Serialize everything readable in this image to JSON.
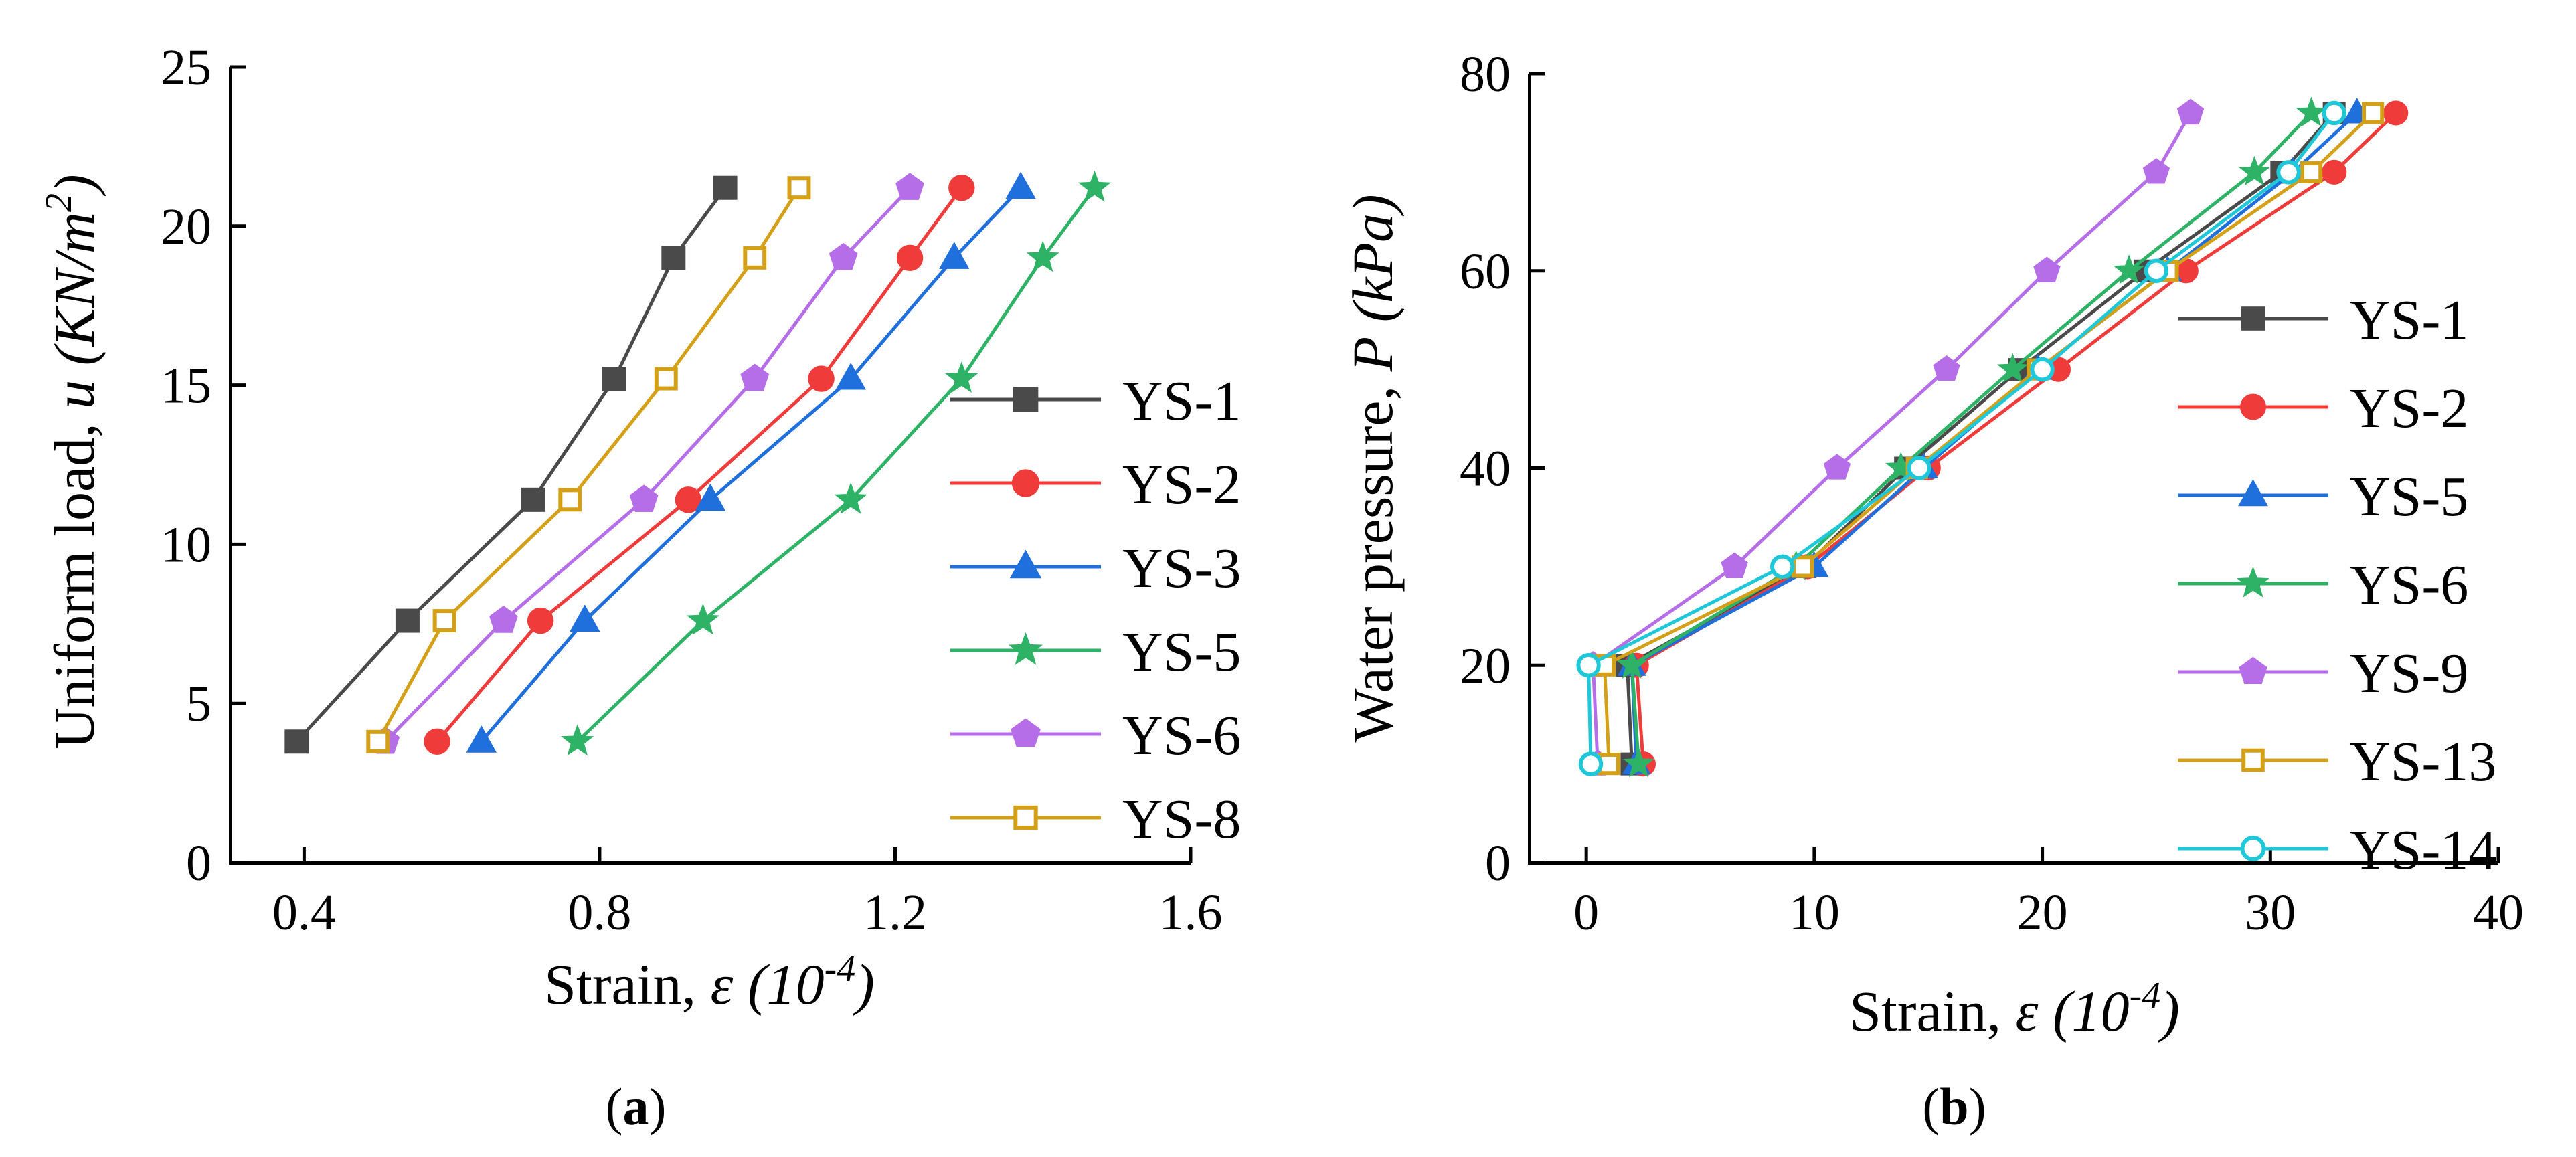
{
  "chart_data": [
    {
      "type": "line",
      "panel_label": "a",
      "xlabel_main": "Strain, ",
      "xlabel_symbol": "ε",
      "xlabel_unit": "(10",
      "xlabel_exp": "-4",
      "xlabel_close": ")",
      "ylabel_main": "Uniform load, ",
      "ylabel_symbol": "u",
      "ylabel_unit": "(KN/m",
      "ylabel_exp": "2",
      "ylabel_close": ")",
      "xlim": [
        0.3,
        1.6
      ],
      "ylim": [
        0,
        25
      ],
      "xticks": [
        0.4,
        0.8,
        1.2,
        1.6
      ],
      "xtick_labels": [
        "0.4",
        "0.8",
        "1.2",
        "1.6"
      ],
      "yticks": [
        0,
        5,
        10,
        15,
        20,
        25
      ],
      "ytick_labels": [
        "0",
        "5",
        "10",
        "15",
        "20",
        "25"
      ],
      "grid": false,
      "legend_position": "right",
      "series": [
        {
          "name": "YS-1",
          "color": "#4a4a4a",
          "marker": "square",
          "x": [
            0.39,
            0.54,
            0.71,
            0.82,
            0.9,
            0.97
          ],
          "y": [
            3.8,
            7.6,
            11.4,
            15.2,
            19.0,
            21.2
          ]
        },
        {
          "name": "YS-2",
          "color": "#f03b3b",
          "marker": "circle",
          "x": [
            0.58,
            0.72,
            0.92,
            1.1,
            1.22,
            1.29
          ],
          "y": [
            3.8,
            7.6,
            11.4,
            15.2,
            19.0,
            21.2
          ]
        },
        {
          "name": "YS-3",
          "color": "#1f6fdc",
          "marker": "triangle",
          "x": [
            0.64,
            0.78,
            0.95,
            1.14,
            1.28,
            1.37
          ],
          "y": [
            3.8,
            7.6,
            11.4,
            15.2,
            19.0,
            21.2
          ]
        },
        {
          "name": "YS-5",
          "color": "#2db266",
          "marker": "star",
          "x": [
            0.77,
            0.94,
            1.14,
            1.29,
            1.4,
            1.47
          ],
          "y": [
            3.8,
            7.6,
            11.4,
            15.2,
            19.0,
            21.2
          ]
        },
        {
          "name": "YS-6",
          "color": "#b56ee8",
          "marker": "pentagon",
          "x": [
            0.51,
            0.67,
            0.86,
            1.01,
            1.13,
            1.22
          ],
          "y": [
            3.8,
            7.6,
            11.4,
            15.2,
            19.0,
            21.2
          ]
        },
        {
          "name": "YS-8",
          "color": "#d4a017",
          "marker": "open-square",
          "x": [
            0.5,
            0.59,
            0.76,
            0.89,
            1.01,
            1.07
          ],
          "y": [
            3.8,
            7.6,
            11.4,
            15.2,
            19.0,
            21.2
          ]
        }
      ]
    },
    {
      "type": "line",
      "panel_label": "b",
      "xlabel_main": "Strain, ",
      "xlabel_symbol": "ε",
      "xlabel_unit": "(10",
      "xlabel_exp": "-4",
      "xlabel_close": ")",
      "ylabel_main": "Water pressure, ",
      "ylabel_symbol": "P",
      "ylabel_unit": "(kPa",
      "ylabel_exp": "",
      "ylabel_close": ")",
      "xlim": [
        -2.5,
        40
      ],
      "ylim": [
        0,
        80
      ],
      "xticks": [
        0,
        10,
        20,
        30,
        40
      ],
      "xtick_labels": [
        "0",
        "10",
        "20",
        "30",
        "40"
      ],
      "yticks": [
        0,
        20,
        40,
        60,
        80
      ],
      "ytick_labels": [
        "0",
        "20",
        "40",
        "60",
        "80"
      ],
      "grid": false,
      "legend_position": "right",
      "series": [
        {
          "name": "YS-1",
          "color": "#4a4a4a",
          "marker": "square",
          "x": [
            2.0,
            1.8,
            9.6,
            14.0,
            19.0,
            24.5,
            30.5,
            32.8
          ],
          "y": [
            10,
            20,
            30,
            40,
            50,
            60,
            70,
            76
          ]
        },
        {
          "name": "YS-2",
          "color": "#f03b3b",
          "marker": "circle",
          "x": [
            2.5,
            2.2,
            9.7,
            15.0,
            20.7,
            26.3,
            32.8,
            35.5
          ],
          "y": [
            10,
            20,
            30,
            40,
            50,
            60,
            70,
            76
          ]
        },
        {
          "name": "YS-5",
          "color": "#1f6fdc",
          "marker": "triangle",
          "x": [
            2.2,
            2.0,
            10.0,
            14.8,
            19.8,
            25.5,
            31.0,
            33.8
          ],
          "y": [
            10,
            20,
            30,
            40,
            50,
            60,
            70,
            76
          ]
        },
        {
          "name": "YS-6",
          "color": "#2db266",
          "marker": "star",
          "x": [
            2.3,
            2.0,
            9.2,
            13.8,
            18.7,
            23.8,
            29.3,
            31.8
          ],
          "y": [
            10,
            20,
            30,
            40,
            50,
            60,
            70,
            76
          ]
        },
        {
          "name": "YS-9",
          "color": "#b56ee8",
          "marker": "pentagon",
          "x": [
            0.5,
            0.3,
            6.5,
            11.0,
            15.8,
            20.2,
            25.0,
            26.5
          ],
          "y": [
            10,
            20,
            30,
            40,
            50,
            60,
            70,
            76
          ]
        },
        {
          "name": "YS-13",
          "color": "#d4a017",
          "marker": "open-square",
          "x": [
            1.0,
            0.8,
            9.5,
            14.5,
            19.8,
            25.5,
            31.8,
            34.5
          ],
          "y": [
            10,
            20,
            30,
            40,
            50,
            60,
            70,
            76
          ]
        },
        {
          "name": "YS-14",
          "color": "#1ec8d8",
          "marker": "open-circle",
          "x": [
            0.2,
            0.1,
            8.6,
            14.6,
            20.0,
            25.0,
            30.8,
            32.8
          ],
          "y": [
            10,
            20,
            30,
            40,
            50,
            60,
            70,
            76
          ]
        }
      ]
    }
  ]
}
